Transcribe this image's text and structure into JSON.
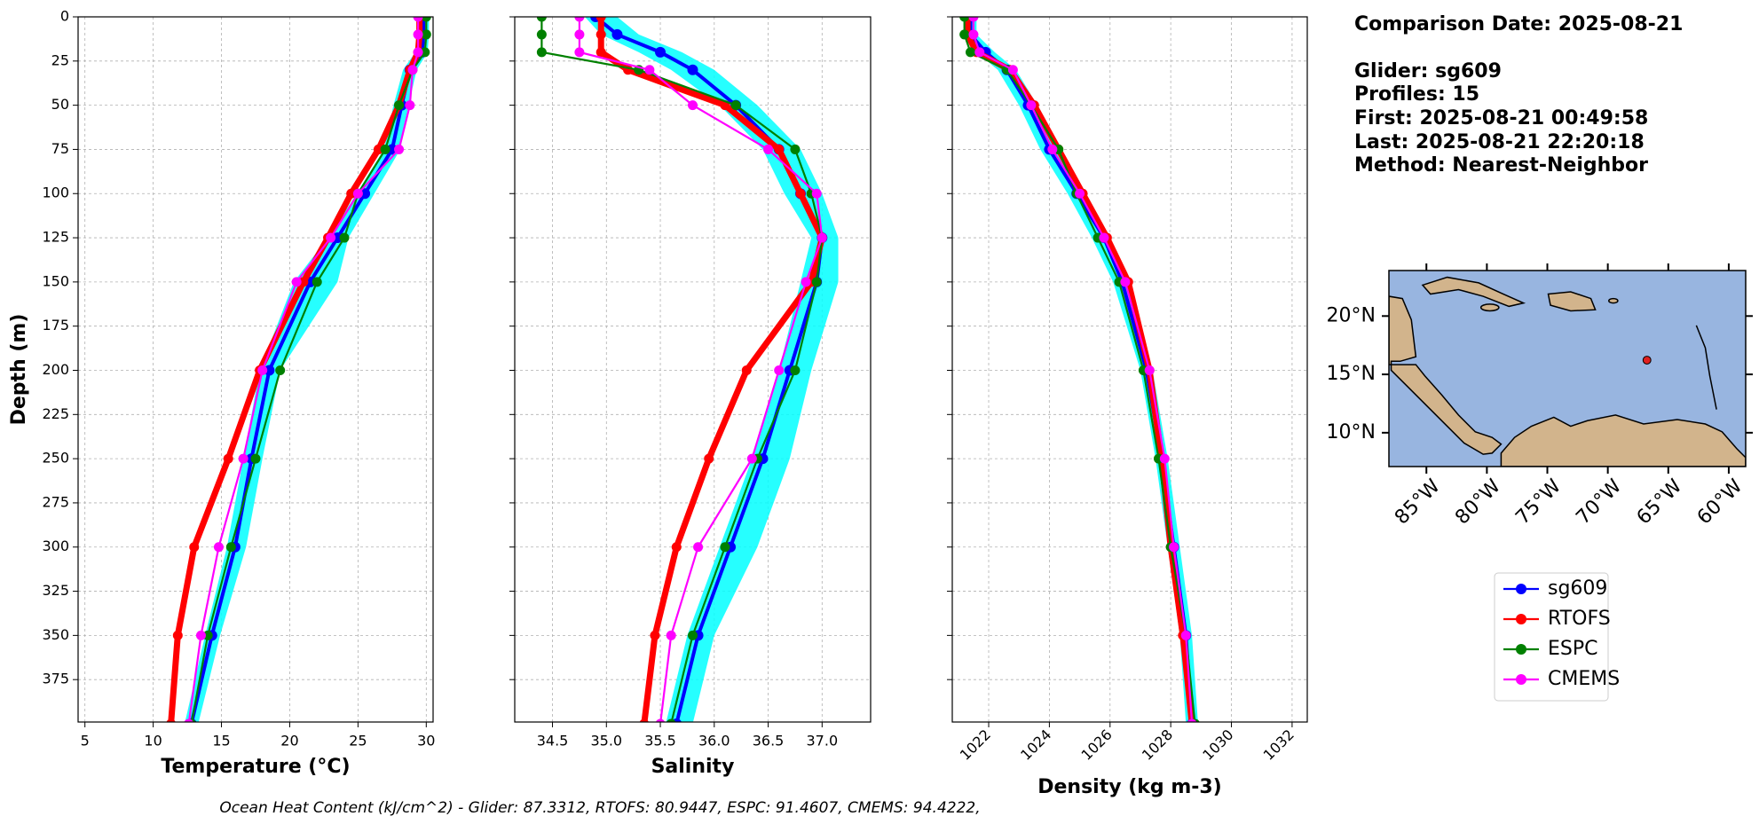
{
  "chart_data": [
    {
      "type": "line",
      "xlabel": "Temperature (°C)",
      "ylabel": "Depth (m)",
      "ytick_labels": true,
      "xlim": [
        4.5,
        30.5
      ],
      "xticks": [
        5,
        10,
        15,
        20,
        25,
        30
      ],
      "ylim": [
        0,
        399
      ],
      "yticks": [
        0,
        25,
        50,
        75,
        100,
        125,
        150,
        175,
        200,
        225,
        250,
        275,
        300,
        325,
        350,
        375
      ],
      "grid": true,
      "y": [
        0,
        10,
        20,
        30,
        50,
        75,
        100,
        125,
        150,
        200,
        250,
        300,
        350,
        400
      ],
      "spread": {
        "color": "#00ffff",
        "low": [
          29.3,
          29.3,
          29.2,
          28.3,
          27.6,
          26.9,
          24.9,
          22.8,
          20.3,
          17.8,
          16.6,
          15.4,
          13.8,
          12.3
        ],
        "high": [
          30.2,
          30.2,
          30.1,
          29.3,
          28.7,
          28.1,
          26.2,
          24.3,
          23.5,
          19.3,
          18.0,
          16.8,
          14.9,
          13.3
        ]
      },
      "series": [
        {
          "name": "sg609",
          "color": "#0000ff",
          "values": [
            29.8,
            29.8,
            29.7,
            28.8,
            28.2,
            27.5,
            25.5,
            23.5,
            21.5,
            18.5,
            17.2,
            16.0,
            14.3,
            12.8
          ]
        },
        {
          "name": "RTOFS",
          "color": "#ff0000",
          "values": [
            29.5,
            29.5,
            29.4,
            28.8,
            28.0,
            26.5,
            24.5,
            22.8,
            21.0,
            17.8,
            15.5,
            13.0,
            11.8,
            11.3
          ]
        },
        {
          "name": "ESPC",
          "color": "#008000",
          "values": [
            30.0,
            30.0,
            29.9,
            29.0,
            28.0,
            27.0,
            25.0,
            24.0,
            22.0,
            19.3,
            17.5,
            15.7,
            14.0,
            12.8
          ]
        },
        {
          "name": "CMEMS",
          "color": "#ff00ff",
          "values": [
            29.4,
            29.4,
            29.4,
            29.0,
            28.8,
            28.0,
            25.0,
            23.0,
            20.5,
            18.0,
            16.6,
            14.8,
            13.5,
            12.6
          ]
        }
      ]
    },
    {
      "type": "line",
      "xlabel": "Salinity",
      "ytick_labels": false,
      "xlim": [
        34.15,
        37.45
      ],
      "xticks": [
        34.5,
        {
          "value": 35,
          "label": "35.0"
        },
        35.5,
        {
          "value": 36,
          "label": "36.0"
        },
        36.5,
        {
          "value": 37,
          "label": "37.0"
        }
      ],
      "ylim": [
        0,
        399
      ],
      "yticks": [
        0,
        25,
        50,
        75,
        100,
        125,
        150,
        175,
        200,
        225,
        250,
        275,
        300,
        325,
        350,
        375
      ],
      "grid": true,
      "y": [
        0,
        10,
        20,
        30,
        50,
        75,
        100,
        125,
        150,
        200,
        250,
        300,
        350,
        400
      ],
      "spread": {
        "color": "#00ffff",
        "low": [
          34.8,
          34.95,
          35.3,
          35.6,
          36.05,
          36.45,
          36.65,
          36.9,
          36.8,
          36.6,
          36.35,
          36.05,
          35.75,
          35.55
        ],
        "high": [
          35.1,
          35.3,
          35.7,
          36.0,
          36.4,
          36.8,
          37.0,
          37.15,
          37.15,
          36.9,
          36.7,
          36.4,
          36.0,
          35.8
        ]
      },
      "series": [
        {
          "name": "sg609",
          "color": "#0000ff",
          "values": [
            34.9,
            35.1,
            35.5,
            35.8,
            36.2,
            36.6,
            36.8,
            37.0,
            36.95,
            36.7,
            36.45,
            36.15,
            35.85,
            35.65
          ]
        },
        {
          "name": "RTOFS",
          "color": "#ff0000",
          "values": [
            34.95,
            34.95,
            34.95,
            35.2,
            36.1,
            36.6,
            36.8,
            37.0,
            36.9,
            36.3,
            35.95,
            35.65,
            35.45,
            35.35
          ]
        },
        {
          "name": "ESPC",
          "color": "#008000",
          "values": [
            34.4,
            34.4,
            34.4,
            35.3,
            36.2,
            36.75,
            36.9,
            37.0,
            36.95,
            36.75,
            36.4,
            36.1,
            35.8,
            35.6
          ]
        },
        {
          "name": "CMEMS",
          "color": "#ff00ff",
          "values": [
            34.75,
            34.75,
            34.75,
            35.4,
            35.8,
            36.5,
            36.95,
            37.0,
            36.85,
            36.6,
            36.35,
            35.85,
            35.6,
            35.5
          ]
        }
      ]
    },
    {
      "type": "line",
      "xlabel": "Density (kg m-3)",
      "ytick_labels": false,
      "xtick_rotation": 45,
      "xlim": [
        1020.8,
        1032.5
      ],
      "xticks": [
        1022,
        1024,
        1026,
        1028,
        1030,
        1032
      ],
      "ylim": [
        0,
        399
      ],
      "yticks": [
        0,
        25,
        50,
        75,
        100,
        125,
        150,
        175,
        200,
        225,
        250,
        275,
        300,
        325,
        350,
        375
      ],
      "grid": true,
      "y": [
        0,
        10,
        20,
        30,
        50,
        75,
        100,
        125,
        150,
        200,
        250,
        300,
        350,
        400
      ],
      "spread": {
        "color": "#00ffff",
        "low": [
          1021.2,
          1021.2,
          1021.6,
          1022.3,
          1023.0,
          1023.7,
          1024.6,
          1025.4,
          1026.1,
          1027.0,
          1027.5,
          1027.9,
          1028.3,
          1028.5
        ],
        "high": [
          1021.6,
          1021.6,
          1022.2,
          1022.9,
          1023.6,
          1024.3,
          1025.2,
          1026.0,
          1026.6,
          1027.4,
          1027.9,
          1028.3,
          1028.7,
          1028.9
        ]
      },
      "series": [
        {
          "name": "sg609",
          "color": "#0000ff",
          "values": [
            1021.4,
            1021.4,
            1021.9,
            1022.6,
            1023.3,
            1024.0,
            1024.9,
            1025.8,
            1026.4,
            1027.2,
            1027.7,
            1028.1,
            1028.5,
            1028.7
          ]
        },
        {
          "name": "RTOFS",
          "color": "#ff0000",
          "values": [
            1021.3,
            1021.3,
            1021.6,
            1022.7,
            1023.5,
            1024.3,
            1025.1,
            1025.9,
            1026.6,
            1027.3,
            1027.7,
            1028.0,
            1028.4,
            1028.7
          ]
        },
        {
          "name": "ESPC",
          "color": "#008000",
          "values": [
            1021.2,
            1021.2,
            1021.4,
            1022.6,
            1023.4,
            1024.3,
            1024.9,
            1025.6,
            1026.3,
            1027.1,
            1027.6,
            1028.0,
            1028.5,
            1028.8
          ]
        },
        {
          "name": "CMEMS",
          "color": "#ff00ff",
          "values": [
            1021.5,
            1021.5,
            1021.7,
            1022.8,
            1023.4,
            1024.1,
            1025.0,
            1025.8,
            1026.5,
            1027.3,
            1027.8,
            1028.1,
            1028.5,
            1028.7
          ]
        }
      ]
    }
  ],
  "info": {
    "lines": [
      "Comparison Date: 2025-08-21",
      "Glider: sg609",
      "Profiles: 15",
      "First: 2025-08-21 00:49:58",
      "Last: 2025-08-21 22:20:18",
      "Method: Nearest-Neighbor"
    ]
  },
  "map": {
    "lonlim": [
      -88.1,
      -58.6
    ],
    "latlim": [
      7.1,
      23.9
    ],
    "lat_ticks": [
      {
        "value": 10,
        "label": "10°N"
      },
      {
        "value": 15,
        "label": "15°N"
      },
      {
        "value": 20,
        "label": "20°N"
      }
    ],
    "lon_ticks": [
      {
        "value": -85,
        "label": "85°W"
      },
      {
        "value": -80,
        "label": "80°W"
      },
      {
        "value": -75,
        "label": "75°W"
      },
      {
        "value": -70,
        "label": "70°W"
      },
      {
        "value": -65,
        "label": "65°W"
      },
      {
        "value": -60,
        "label": "60°W"
      }
    ]
  },
  "footer": "Ocean Heat Content (kJ/cm^2) - Glider: 87.3312,  RTOFS: 80.9447,  ESPC: 91.4607,  CMEMS: 94.4222,"
}
